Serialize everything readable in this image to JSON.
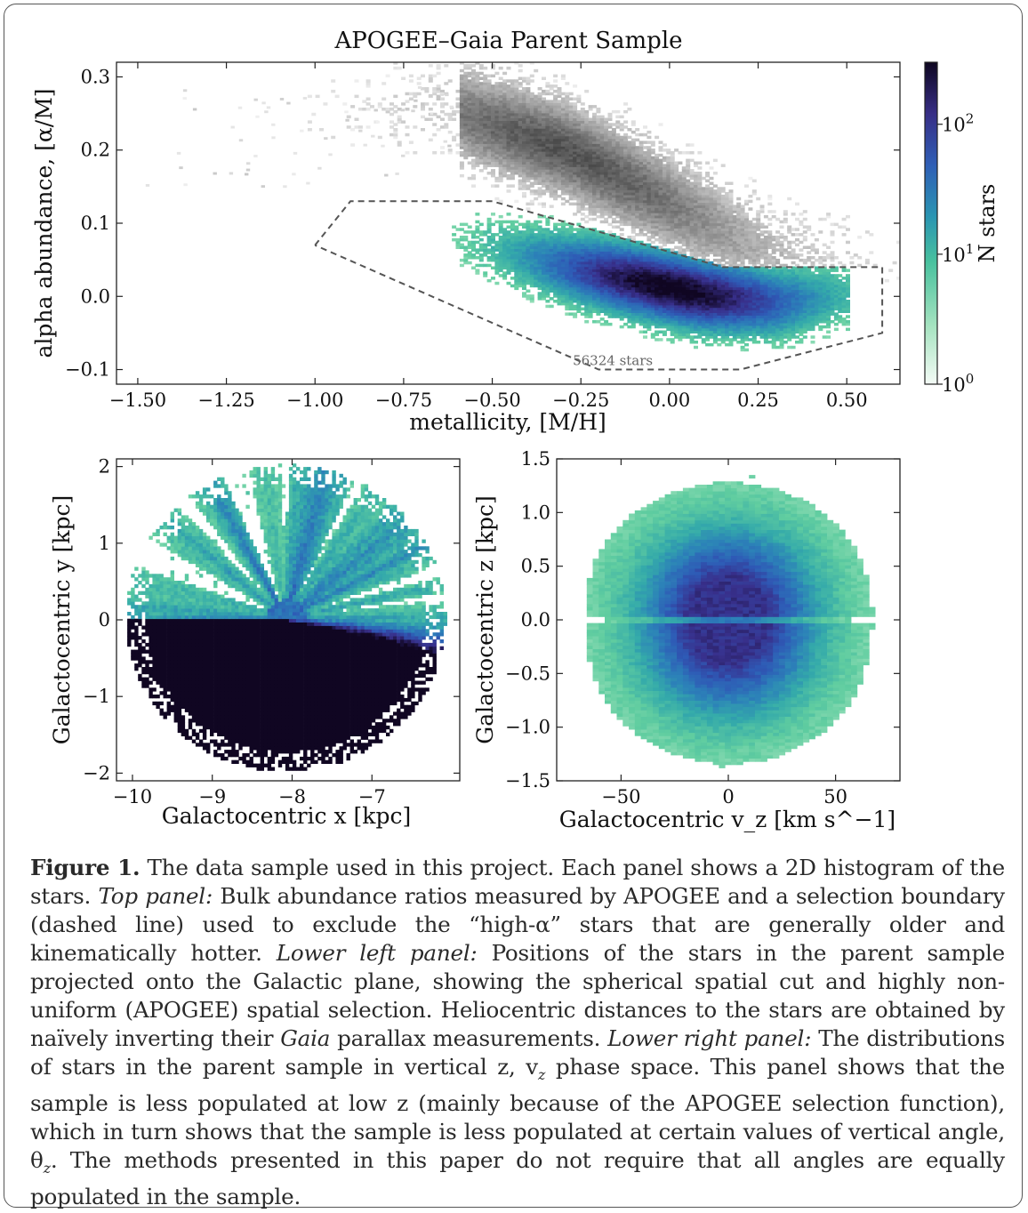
{
  "figure": {
    "title": "APOGEE–Gaia Parent Sample",
    "colorbar": {
      "label": "N stars",
      "ticks": [
        "10^0",
        "10^1",
        "10^2"
      ]
    }
  },
  "chart_data": [
    {
      "type": "heatmap",
      "panel": "top",
      "title": "APOGEE–Gaia Parent Sample",
      "xlabel": "metallicity, [M/H]",
      "ylabel": "alpha abundance, [α/M]",
      "xlim": [
        -1.56,
        0.65
      ],
      "ylim": [
        -0.12,
        0.32
      ],
      "xticks": [
        "−1.50",
        "−1.25",
        "−1.00",
        "−0.75",
        "−0.50",
        "−0.25",
        "0.00",
        "0.25",
        "0.50"
      ],
      "yticks": [
        "−0.1",
        "0.0",
        "0.1",
        "0.2",
        "0.3"
      ],
      "annotation": "56324 stars",
      "color_scale": "log",
      "color_range": [
        1,
        300
      ],
      "selection_boundary": [
        [
          -1.0,
          0.07
        ],
        [
          -0.9,
          0.13
        ],
        [
          -0.5,
          0.13
        ],
        [
          0.15,
          0.04
        ],
        [
          0.6,
          0.04
        ],
        [
          0.6,
          -0.05
        ],
        [
          0.2,
          -0.1
        ],
        [
          -0.2,
          -0.1
        ],
        [
          -1.0,
          0.07
        ]
      ],
      "high_alpha_sequence": [
        [
          -1.5,
          0.24
        ],
        [
          -0.65,
          0.26
        ],
        [
          -0.55,
          0.24
        ],
        [
          -0.3,
          0.2
        ],
        [
          -0.1,
          0.15
        ],
        [
          0.1,
          0.1
        ],
        [
          0.3,
          0.05
        ]
      ],
      "low_alpha_sequence": [
        [
          -0.55,
          0.07
        ],
        [
          -0.3,
          0.04
        ],
        [
          -0.1,
          0.02
        ],
        [
          0.1,
          0.0
        ],
        [
          0.3,
          -0.01
        ],
        [
          0.48,
          0.0
        ]
      ],
      "peak": [
        0.0,
        0.0
      ]
    },
    {
      "type": "heatmap",
      "panel": "lower-left",
      "xlabel": "Galactocentric x [kpc]",
      "ylabel": "Galactocentric y [kpc]",
      "xlim": [
        -10.2,
        -5.9
      ],
      "ylim": [
        -2.1,
        2.1
      ],
      "xticks": [
        "−10",
        "−9",
        "−8",
        "−7"
      ],
      "yticks": [
        "−2",
        "−1",
        "0",
        "1",
        "2"
      ],
      "sun_position": [
        -8.1,
        0.0
      ],
      "radius_kpc": 2.0
    },
    {
      "type": "heatmap",
      "panel": "lower-right",
      "xlabel": "Galactocentric v_z [km s^−1]",
      "ylabel": "Galactocentric z [kpc]",
      "xlim": [
        -80,
        80
      ],
      "ylim": [
        -1.5,
        1.5
      ],
      "xticks": [
        "−50",
        "0",
        "50"
      ],
      "yticks": [
        "−1.5",
        "−1.0",
        "−0.5",
        "0.0",
        "0.5",
        "1.0",
        "1.5"
      ],
      "peaks": [
        [
          0,
          0.25
        ],
        [
          0,
          -0.35
        ]
      ]
    }
  ],
  "caption": {
    "label": "Figure 1.",
    "parts": [
      {
        "t": " The data sample used in this project. Each panel shows a 2D histogram of the stars. "
      },
      {
        "t": "Top panel:",
        "i": true
      },
      {
        "t": " Bulk abundance ratios measured by APOGEE and a selection boundary (dashed line) used to exclude the “high-α” stars that are generally older and kinematically hotter. "
      },
      {
        "t": "Lower left panel:",
        "i": true
      },
      {
        "t": " Positions of the stars in the parent sample projected onto the Galactic plane, showing the spherical spatial cut and highly non-uniform (APOGEE) spatial selection. Heliocentric distances to the stars are obtained by naïvely inverting their "
      },
      {
        "t": "Gaia",
        "i": true
      },
      {
        "t": " parallax measurements. "
      },
      {
        "t": "Lower right panel:",
        "i": true
      },
      {
        "t": " The distributions of stars in the parent sample in vertical z, v"
      },
      {
        "t": "z",
        "sub": true
      },
      {
        "t": " phase space. This panel shows that the sample is less populated at low z (mainly because of the APOGEE selection function), which in turn shows that the sample is less populated at certain values of vertical angle, θ"
      },
      {
        "t": "z",
        "sub": true
      },
      {
        "t": ". The methods presented in this paper do not require that all angles are equally populated in the sample."
      }
    ]
  }
}
